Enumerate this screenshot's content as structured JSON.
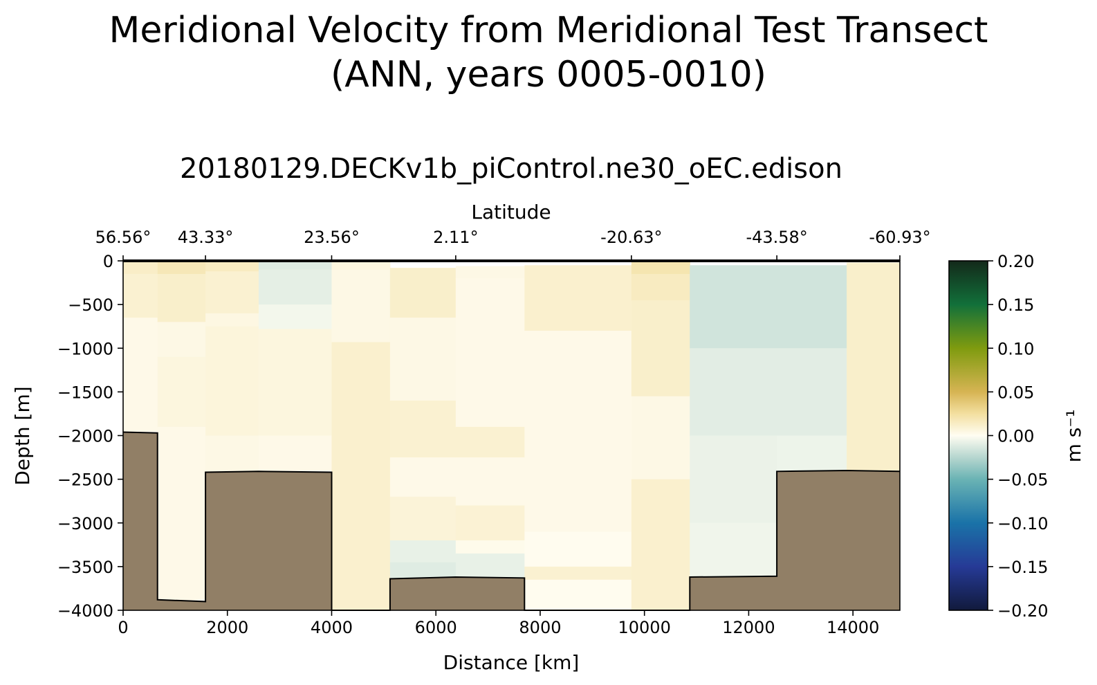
{
  "chart_data": {
    "type": "heatmap",
    "title_lines": [
      "Meridional Velocity from Meridional Test Transect",
      "(ANN, years 0005-0010)"
    ],
    "subtitle": "20180129.DECKv1b_piControl.ne30_oEC.edison",
    "xlabel": "Distance [km]",
    "ylabel": "Depth [m]",
    "top_axis_label": "Latitude",
    "xlim": [
      0,
      14900
    ],
    "ylim": [
      -4000,
      0
    ],
    "x_ticks": [
      0,
      2000,
      4000,
      6000,
      8000,
      10000,
      12000,
      14000
    ],
    "x_tick_labels": [
      "0",
      "2000",
      "4000",
      "6000",
      "8000",
      "10000",
      "12000",
      "14000"
    ],
    "y_ticks": [
      0,
      -500,
      -1000,
      -1500,
      -2000,
      -2500,
      -3000,
      -3500,
      -4000
    ],
    "y_tick_labels": [
      "0",
      "−500",
      "−1000",
      "−1500",
      "−2000",
      "−2500",
      "−3000",
      "−3500",
      "−4000"
    ],
    "latitude_ticks": [
      {
        "distance": 0,
        "label": "56.56°"
      },
      {
        "distance": 1580,
        "label": "43.33°"
      },
      {
        "distance": 4000,
        "label": "23.56°"
      },
      {
        "distance": 6380,
        "label": "2.11°"
      },
      {
        "distance": 9750,
        "label": "-20.63°"
      },
      {
        "distance": 12540,
        "label": "-43.58°"
      },
      {
        "distance": 14900,
        "label": "-60.93°"
      }
    ],
    "colorbar": {
      "label": "m s⁻¹",
      "range": [
        -0.2,
        0.2
      ],
      "ticks": [
        0.2,
        0.15,
        0.1,
        0.05,
        0.0,
        -0.05,
        -0.1,
        -0.15,
        -0.2
      ],
      "tick_labels": [
        "0.20",
        "0.15",
        "0.10",
        "0.05",
        "0.00",
        "−0.05",
        "−0.10",
        "−0.15",
        "−0.20"
      ],
      "stops": [
        {
          "value": -0.2,
          "color": "#111a3c"
        },
        {
          "value": -0.15,
          "color": "#263a96"
        },
        {
          "value": -0.1,
          "color": "#1a73a8"
        },
        {
          "value": -0.05,
          "color": "#6ab3b4"
        },
        {
          "value": -0.025,
          "color": "#b6d6cf"
        },
        {
          "value": 0.0,
          "color": "#fffdf2"
        },
        {
          "value": 0.025,
          "color": "#f3dfa0"
        },
        {
          "value": 0.05,
          "color": "#d6b453"
        },
        {
          "value": 0.1,
          "color": "#7f9b0f"
        },
        {
          "value": 0.15,
          "color": "#12703a"
        },
        {
          "value": 0.2,
          "color": "#13291a"
        }
      ]
    },
    "columns": [
      {
        "x0": 0,
        "x1": 660,
        "cells": [
          [
            0,
            -150,
            0.013
          ],
          [
            -150,
            -650,
            0.01
          ],
          [
            -650,
            -1950,
            0.003
          ]
        ]
      },
      {
        "x0": 660,
        "x1": 1580,
        "cells": [
          [
            0,
            -150,
            0.018
          ],
          [
            -150,
            -700,
            0.012
          ],
          [
            -700,
            -1100,
            0.004
          ],
          [
            -1100,
            -1900,
            0.006
          ],
          [
            -1900,
            -3880,
            0.003
          ]
        ]
      },
      {
        "x0": 1580,
        "x1": 2600,
        "cells": [
          [
            0,
            -120,
            0.015
          ],
          [
            -120,
            -600,
            0.01
          ],
          [
            -600,
            -750,
            0.005
          ],
          [
            -750,
            -2000,
            0.007
          ],
          [
            -2000,
            -2420,
            0.004
          ]
        ]
      },
      {
        "x0": 2600,
        "x1": 4000,
        "cells": [
          [
            0,
            -100,
            -0.012
          ],
          [
            -100,
            -500,
            -0.009
          ],
          [
            -500,
            -780,
            -0.004
          ],
          [
            -780,
            -2000,
            0.006
          ],
          [
            -2000,
            -2400,
            0.003
          ]
        ]
      },
      {
        "x0": 4000,
        "x1": 5120,
        "cells": [
          [
            0,
            -100,
            0.006
          ],
          [
            -100,
            -930,
            0.004
          ],
          [
            -930,
            -4000,
            0.011
          ]
        ]
      },
      {
        "x0": 5120,
        "x1": 6380,
        "cells": [
          [
            -80,
            -650,
            0.012
          ],
          [
            -650,
            -1600,
            0.004
          ],
          [
            -1600,
            -2250,
            0.01
          ],
          [
            -2250,
            -2700,
            0.003
          ],
          [
            -2700,
            -3200,
            0.008
          ],
          [
            -3200,
            -3450,
            -0.008
          ],
          [
            -3450,
            -3640,
            -0.011
          ]
        ]
      },
      {
        "x0": 6380,
        "x1": 7700,
        "cells": [
          [
            -60,
            -200,
            0.004
          ],
          [
            -200,
            -1900,
            0.003
          ],
          [
            -1900,
            -2250,
            0.01
          ],
          [
            -2250,
            -2800,
            0.003
          ],
          [
            -2800,
            -3200,
            0.009
          ],
          [
            -3200,
            -3350,
            0.002
          ],
          [
            -3350,
            -3630,
            -0.008
          ]
        ]
      },
      {
        "x0": 7700,
        "x1": 9750,
        "cells": [
          [
            -50,
            -800,
            0.011
          ],
          [
            -800,
            -3100,
            0.003
          ],
          [
            -3100,
            -3500,
            0.001
          ],
          [
            -3500,
            -3650,
            0.01
          ],
          [
            -3650,
            -4000,
            0.001
          ]
        ]
      },
      {
        "x0": 9750,
        "x1": 10870,
        "cells": [
          [
            0,
            -150,
            0.02
          ],
          [
            -150,
            -450,
            0.015
          ],
          [
            -450,
            -1550,
            0.012
          ],
          [
            -1550,
            -2500,
            0.004
          ],
          [
            -2500,
            -4000,
            0.011
          ]
        ]
      },
      {
        "x0": 10870,
        "x1": 12540,
        "cells": [
          [
            -50,
            -1000,
            -0.016
          ],
          [
            -1000,
            -2000,
            -0.01
          ],
          [
            -2000,
            -3000,
            -0.007
          ],
          [
            -3000,
            -3620,
            -0.005
          ]
        ]
      },
      {
        "x0": 12540,
        "x1": 13880,
        "cells": [
          [
            -50,
            -1000,
            -0.016
          ],
          [
            -1000,
            -2000,
            -0.01
          ],
          [
            -2000,
            -2420,
            -0.006
          ]
        ]
      },
      {
        "x0": 13880,
        "x1": 14900,
        "cells": [
          [
            -20,
            -2420,
            0.012
          ]
        ]
      }
    ],
    "bathymetry": {
      "color": "#917f66",
      "x": [
        0,
        660,
        660,
        1580,
        1580,
        2600,
        4000,
        4000,
        5120,
        5120,
        6380,
        7700,
        7700,
        10870,
        10870,
        12540,
        12540,
        13880,
        14900
      ],
      "depth": [
        -1960,
        -1970,
        -3880,
        -3900,
        -2420,
        -2410,
        -2420,
        -4000,
        -4000,
        -3640,
        -3620,
        -3630,
        -4000,
        -4000,
        -3620,
        -3610,
        -2410,
        -2400,
        -2410
      ]
    }
  }
}
